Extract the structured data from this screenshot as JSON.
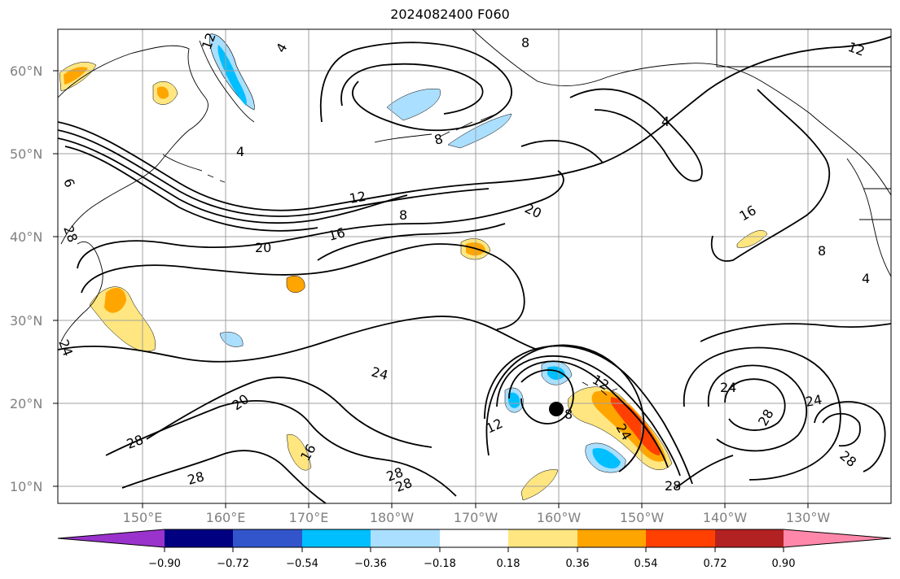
{
  "title": "2024082400 F060",
  "lat_labels": [
    "60°N",
    "50°N",
    "40°N",
    "30°N",
    "20°N",
    "10°N"
  ],
  "lon_labels": [
    "150°E",
    "160°E",
    "170°E",
    "180°W",
    "170°W",
    "160°W",
    "150°W",
    "140°W",
    "130°W"
  ],
  "contour_labels": [
    "12",
    "4",
    "4",
    "8",
    "4",
    "12",
    "12",
    "16",
    "8",
    "20",
    "20",
    "16",
    "8",
    "4",
    "24",
    "24",
    "20",
    "28",
    "28",
    "16",
    "28",
    "28",
    "12",
    "28",
    "24",
    "12",
    "8",
    "24",
    "28",
    "24",
    "28",
    "8",
    "6",
    "28"
  ],
  "colorbar": {
    "ticks": [
      "−0.90",
      "−0.72",
      "−0.54",
      "−0.36",
      "−0.18",
      "0.18",
      "0.36",
      "0.54",
      "0.72",
      "0.90"
    ],
    "colors": [
      "#9933cc",
      "#000080",
      "#3355cc",
      "#00bfff",
      "#aadfff",
      "#ffffff",
      "#ffe680",
      "#ffa500",
      "#ff4000",
      "#b22222",
      "#ff88aa"
    ]
  },
  "map_colors": {
    "land_line": "#000000",
    "grid": "#a0a0a0",
    "contour": "#000000"
  }
}
